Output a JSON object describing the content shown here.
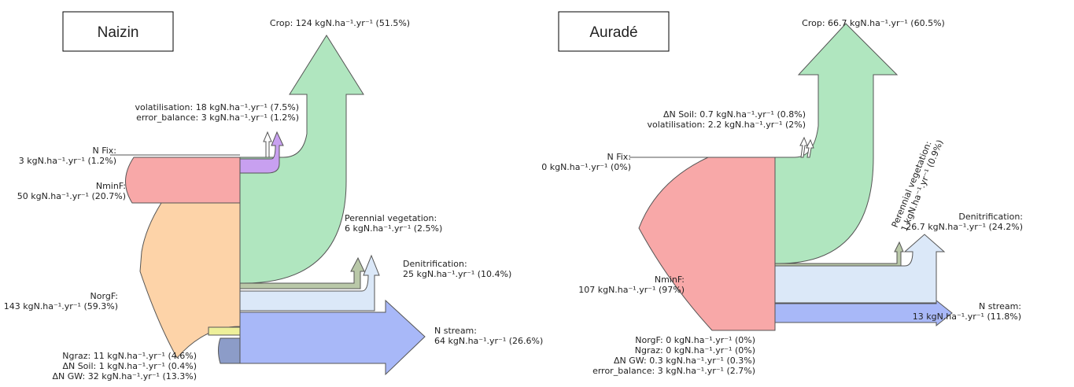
{
  "panels": [
    {
      "title": "Naizin",
      "labels": [
        {
          "lines": [
            "Crop: 124 kgN.ha⁻¹.yr⁻¹ (51.5%)"
          ]
        },
        {
          "lines": [
            "volatilisation: 18 kgN.ha⁻¹.yr⁻¹ (7.5%)",
            "error_balance: 3 kgN.ha⁻¹.yr⁻¹ (1.2%)"
          ]
        },
        {
          "lines": [
            "N Fix:",
            "3 kgN.ha⁻¹.yr⁻¹ (1.2%)"
          ]
        },
        {
          "lines": [
            "NminF:",
            "50 kgN.ha⁻¹.yr⁻¹ (20.7%)"
          ]
        },
        {
          "lines": [
            "Perennial vegetation:",
            "6 kgN.ha⁻¹.yr⁻¹ (2.5%)"
          ]
        },
        {
          "lines": [
            "Denitrification:",
            "25 kgN.ha⁻¹.yr⁻¹ (10.4%)"
          ]
        },
        {
          "lines": [
            "NorgF:",
            "143 kgN.ha⁻¹.yr⁻¹ (59.3%)"
          ]
        },
        {
          "lines": [
            "N stream:",
            "64 kgN.ha⁻¹.yr⁻¹ (26.6%)"
          ]
        },
        {
          "lines": [
            "Ngraz: 11 kgN.ha⁻¹.yr⁻¹ (4.6%)",
            "ΔN Soil: 1 kgN.ha⁻¹.yr⁻¹ (0.4%)",
            "ΔN GW: 32 kgN.ha⁻¹.yr⁻¹ (13.3%)"
          ]
        }
      ]
    },
    {
      "title": "Auradé",
      "labels": [
        {
          "lines": [
            "Crop: 66.7 kgN.ha⁻¹.yr⁻¹ (60.5%)"
          ]
        },
        {
          "lines": [
            "ΔN Soil: 0.7 kgN.ha⁻¹.yr⁻¹ (0.8%)",
            "volatilisation: 2.2 kgN.ha⁻¹.yr⁻¹ (2%)"
          ]
        },
        {
          "lines": [
            "N Fix:",
            "0 kgN.ha⁻¹.yr⁻¹ (0%)"
          ]
        },
        {
          "lines": [
            "Perennial vegetation:",
            "1 kgN.ha⁻¹.yr⁻¹ (0.9%)"
          ]
        },
        {
          "lines": [
            "Denitrification:",
            "26.7 kgN.ha⁻¹.yr⁻¹ (24.2%)"
          ]
        },
        {
          "lines": [
            "NminF:",
            "107 kgN.ha⁻¹.yr⁻¹ (97%)"
          ]
        },
        {
          "lines": [
            "N stream:",
            "13 kgN.ha⁻¹.yr⁻¹ (11.8%)"
          ]
        },
        {
          "lines": [
            "NorgF: 0 kgN.ha⁻¹.yr⁻¹ (0%)",
            "Ngraz: 0 kgN.ha⁻¹.yr⁻¹ (0%)",
            "ΔN GW: 0.3 kgN.ha⁻¹.yr⁻¹ (0.3%)",
            "error_balance: 3 kgN.ha⁻¹.yr⁻¹ (2.7%)"
          ]
        }
      ]
    }
  ]
}
